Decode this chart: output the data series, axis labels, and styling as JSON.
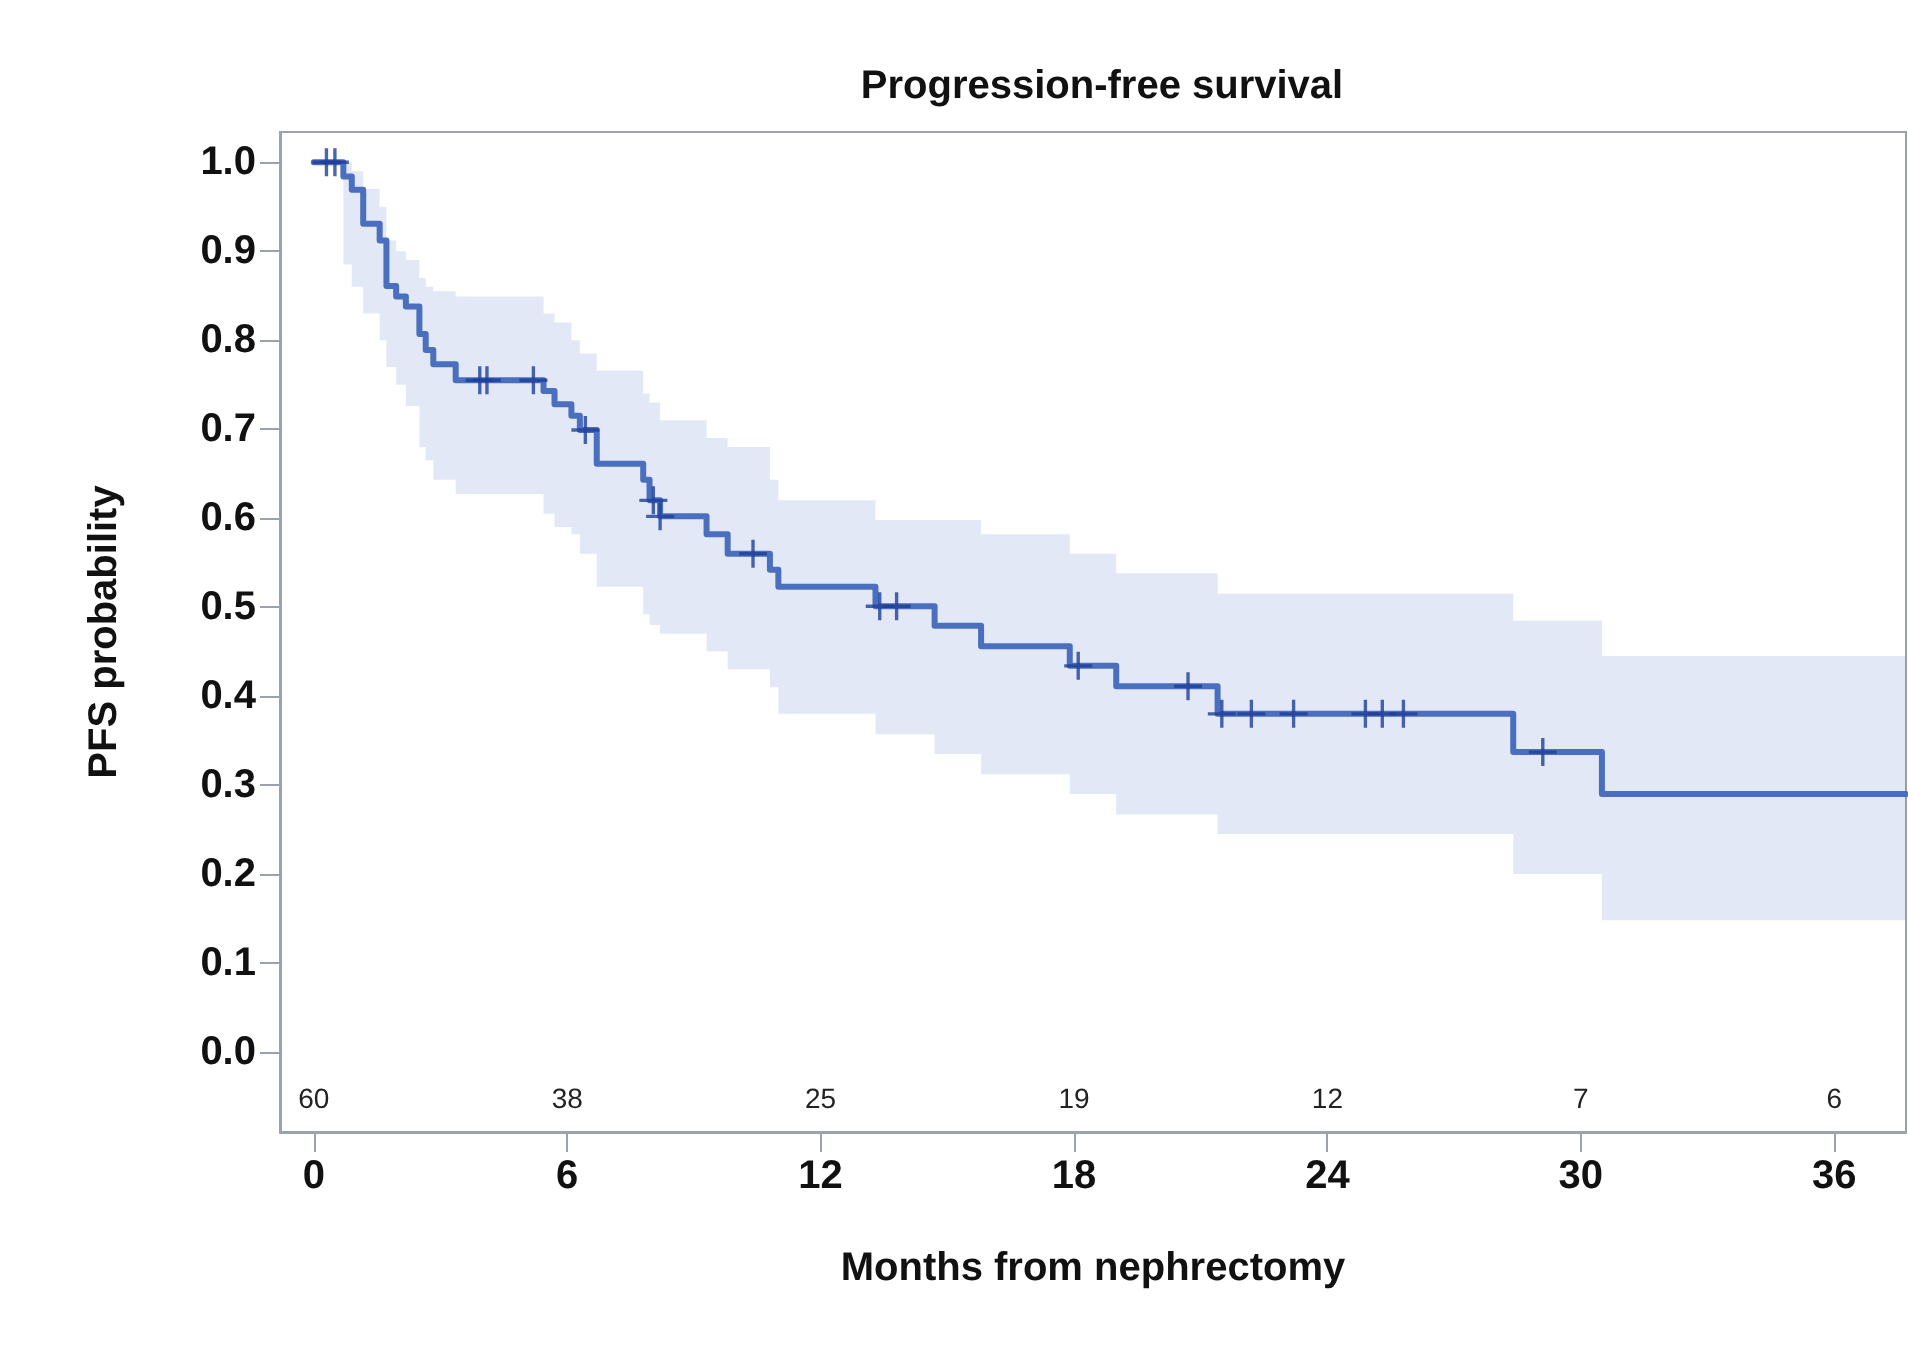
{
  "chart_data": {
    "type": "step",
    "title": "Progression-free survival",
    "xlabel": "Months from nephrectomy",
    "ylabel": "PFS probability",
    "xlim": [
      -0.8,
      37.7
    ],
    "ylim": [
      -0.09,
      1.034
    ],
    "xticks": [
      0,
      6,
      12,
      18,
      24,
      30,
      36
    ],
    "yticks": [
      {
        "value": 0,
        "label": "0.0"
      },
      0.1,
      0.2,
      0.3,
      0.4,
      0.5,
      0.6,
      0.7,
      0.8,
      0.9,
      {
        "value": 1,
        "label": "1.0"
      }
    ],
    "grid": false,
    "line_style": "solid",
    "series": [
      {
        "color": "#4a6fbf",
        "marker": "none",
        "x": [
          0,
          0.7,
          0.9,
          1.17,
          1.56,
          1.72,
          1.95,
          2.18,
          2.5,
          2.65,
          2.83,
          3.36,
          5.44,
          5.7,
          6.1,
          6.3,
          6.7,
          7.8,
          7.95,
          8.2,
          9.3,
          9.8,
          10.8,
          11.0,
          13.3,
          14.7,
          15.8,
          17.9,
          19.0,
          21.4,
          28.4,
          30.5,
          37.7
        ],
        "values": [
          1,
          0.984,
          0.969,
          0.931,
          0.912,
          0.861,
          0.849,
          0.838,
          0.807,
          0.789,
          0.773,
          0.755,
          0.743,
          0.728,
          0.715,
          0.699,
          0.661,
          0.643,
          0.62,
          0.602,
          0.582,
          0.56,
          0.542,
          0.523,
          0.501,
          0.479,
          0.456,
          0.434,
          0.411,
          0.38,
          0.337,
          0.29,
          0.29
        ],
        "lower": [
          1,
          0.885,
          0.86,
          0.83,
          0.8,
          0.77,
          0.75,
          0.726,
          0.68,
          0.665,
          0.643,
          0.627,
          0.605,
          0.59,
          0.582,
          0.56,
          0.523,
          0.492,
          0.48,
          0.47,
          0.45,
          0.43,
          0.41,
          0.38,
          0.357,
          0.335,
          0.312,
          0.29,
          0.267,
          0.245,
          0.2,
          0.148,
          0.148
        ],
        "upper": [
          1,
          1,
          0.99,
          0.97,
          0.95,
          0.912,
          0.9,
          0.89,
          0.87,
          0.86,
          0.855,
          0.849,
          0.83,
          0.82,
          0.8,
          0.785,
          0.766,
          0.74,
          0.73,
          0.71,
          0.69,
          0.68,
          0.643,
          0.62,
          0.598,
          0.598,
          0.582,
          0.56,
          0.538,
          0.515,
          0.485,
          0.445,
          0.445
        ]
      },
      {
        "type": "scatter",
        "color": "#1f3f99",
        "marker": "cross",
        "x": [
          0.3,
          0.5,
          3.93,
          4.1,
          5.2,
          6.43,
          8.04,
          8.2,
          10.4,
          13.4,
          13.8,
          18.1,
          20.7,
          21.5,
          22.2,
          23.2,
          24.9,
          25.3,
          25.8,
          29.1
        ],
        "values": [
          1,
          1,
          0.755,
          0.755,
          0.755,
          0.699,
          0.62,
          0.602,
          0.56,
          0.501,
          0.501,
          0.434,
          0.411,
          0.38,
          0.38,
          0.38,
          0.38,
          0.38,
          0.38,
          0.337
        ]
      }
    ],
    "annotations": [
      "60",
      "38",
      "25",
      "19",
      "12",
      "7",
      "6"
    ]
  }
}
